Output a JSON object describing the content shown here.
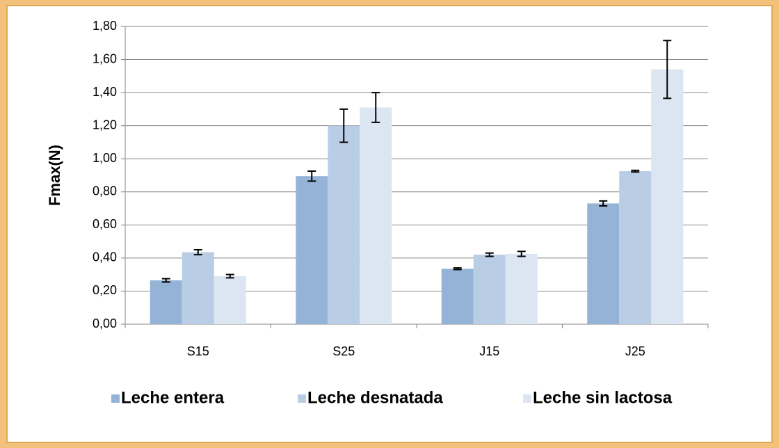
{
  "chart_data": {
    "type": "bar",
    "y_label": "Fmax(N)",
    "categories": [
      "S15",
      "S25",
      "J15",
      "J25"
    ],
    "series": [
      {
        "name": "Leche entera",
        "color": "#95b3d7",
        "values": [
          0.265,
          0.895,
          0.335,
          0.73
        ],
        "errors": [
          0.01,
          0.03,
          0.005,
          0.015
        ]
      },
      {
        "name": "Leche desnatada",
        "color": "#b9cde5",
        "values": [
          0.435,
          1.2,
          0.42,
          0.925
        ],
        "errors": [
          0.015,
          0.1,
          0.01,
          0.005
        ]
      },
      {
        "name": "Leche sin lactosa",
        "color": "#dce6f2",
        "values": [
          0.29,
          1.31,
          0.425,
          1.54
        ],
        "errors": [
          0.01,
          0.09,
          0.015,
          0.175
        ]
      }
    ],
    "ylim": [
      0,
      1.8
    ],
    "yticks": [
      {
        "value": 0,
        "label": "0,00"
      },
      {
        "value": 0.2,
        "label": "0,20"
      },
      {
        "value": 0.4,
        "label": "0,40"
      },
      {
        "value": 0.6,
        "label": "0,60"
      },
      {
        "value": 0.8,
        "label": "0,80"
      },
      {
        "value": 1.0,
        "label": "1,00"
      },
      {
        "value": 1.2,
        "label": "1,20"
      },
      {
        "value": 1.4,
        "label": "1,40"
      },
      {
        "value": 1.6,
        "label": "1,60"
      },
      {
        "value": 1.8,
        "label": "1,80"
      }
    ],
    "grid": true,
    "legend": "bottom"
  }
}
